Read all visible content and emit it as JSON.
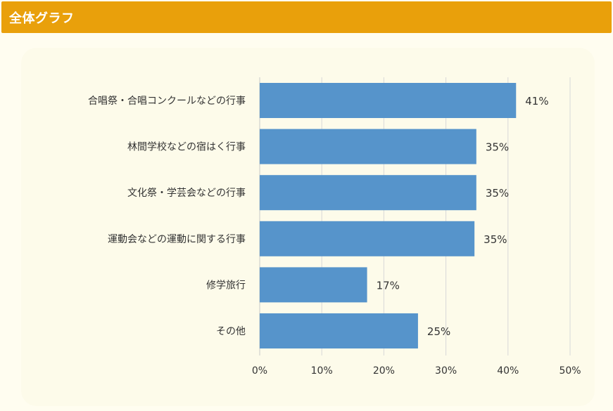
{
  "header": {
    "title": "全体グラフ"
  },
  "colors": {
    "header": "#e9a00b",
    "bar": "#5694cb",
    "grid": "#d8d8d8"
  },
  "chart_data": {
    "type": "bar",
    "orientation": "horizontal",
    "categories": [
      "合唱祭・合唱コンクールなどの行事",
      "林間学校などの宿はく行事",
      "文化祭・学芸会などの行事",
      "運動会などの運動に関する行事",
      "修学旅行",
      "その他"
    ],
    "values": [
      41.3,
      34.9,
      34.9,
      34.6,
      17.3,
      25.5
    ],
    "value_labels": [
      "41%",
      "35%",
      "35%",
      "35%",
      "17%",
      "25%"
    ],
    "xlim": [
      0,
      50
    ],
    "ticks": [
      0,
      10,
      20,
      30,
      40,
      50
    ],
    "tick_labels": [
      "0%",
      "10%",
      "20%",
      "30%",
      "40%",
      "50%"
    ],
    "grid": true
  }
}
